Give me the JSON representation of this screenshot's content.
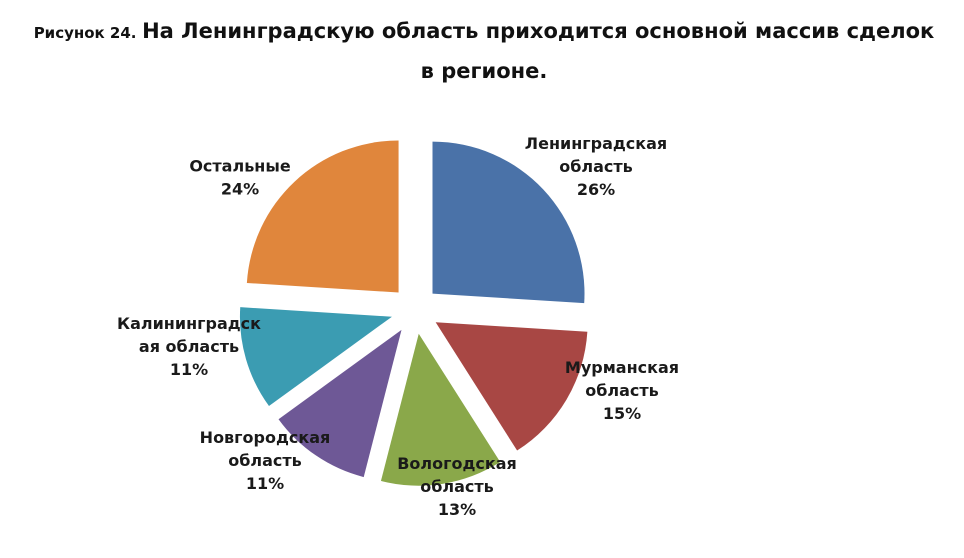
{
  "title_prefix": "Рисунок 24.",
  "title_main": "На Ленинградскую область приходится основной массив сделок в регионе.",
  "chart_data": {
    "type": "pie",
    "title": "На Ленинградскую область приходится основной массив сделок в регионе.",
    "legend": "none",
    "slices": [
      {
        "name": "Ленинградская область",
        "label_lines": [
          "Ленинградская",
          "область",
          "26%"
        ],
        "value": 26,
        "color": "#4a72a8"
      },
      {
        "name": "Мурманская область",
        "label_lines": [
          "Мурманская",
          "область",
          "15%"
        ],
        "value": 15,
        "color": "#a84744"
      },
      {
        "name": "Вологодская область",
        "label_lines": [
          "Вологодская",
          "область",
          "13%"
        ],
        "value": 13,
        "color": "#8aa84a"
      },
      {
        "name": "Новгородская область",
        "label_lines": [
          "Новгородская",
          "область",
          "11%"
        ],
        "value": 11,
        "color": "#6e5896"
      },
      {
        "name": "Калининградская область",
        "label_lines": [
          "Калининградск",
          "ая область",
          "11%"
        ],
        "value": 11,
        "color": "#3b9cb2"
      },
      {
        "name": "Остальные",
        "label_lines": [
          "Остальные",
          "24%"
        ],
        "value": 24,
        "color": "#e0863c"
      }
    ]
  }
}
